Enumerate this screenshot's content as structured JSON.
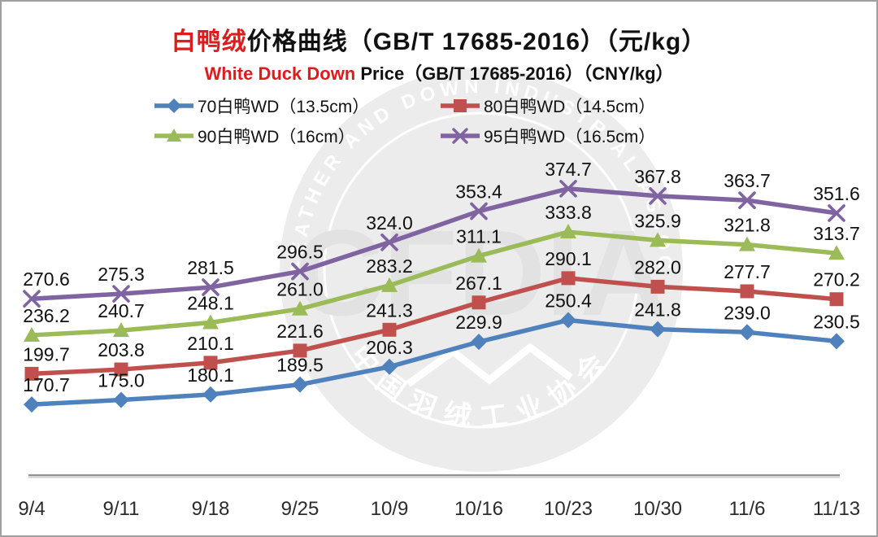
{
  "title": {
    "highlight": "白鸭绒",
    "rest": "价格曲线（GB/T 17685-2016）（元/kg）"
  },
  "subtitle": {
    "highlight": "White Duck Down",
    "rest": " Price（GB/T 17685-2016）（CNY/kg）"
  },
  "watermark": {
    "ring_text_top": "CHINA FEATHER AND DOWN INDUSTRIAL ASSOCIATION",
    "ring_text_bottom": "中国羽绒工业协会",
    "center_text": "CFDIA",
    "circle_color": "#ececec",
    "text_color": "#ffffff",
    "center_text_color": "#e2e2e2"
  },
  "colors": {
    "title_highlight": "#e01b1b",
    "axis_line": "#949494",
    "axis_shadow": "#d2d2d2",
    "tick_label": "#2b2b2b",
    "data_label": "#111111"
  },
  "chart_data": {
    "type": "line",
    "title": "白鸭绒价格曲线（GB/T 17685-2016）（元/kg）",
    "subtitle": "White Duck Down Price（GB/T 17685-2016）（CNY/kg）",
    "xlabel": "",
    "ylabel": "",
    "ylim": [
      160,
      390
    ],
    "grid": false,
    "legend_position": "top",
    "data_labels": true,
    "categories": [
      "9/4",
      "9/11",
      "9/18",
      "9/25",
      "10/9",
      "10/16",
      "10/23",
      "10/30",
      "11/6",
      "11/13"
    ],
    "series": [
      {
        "name": "70白鸭WD（13.5cm）",
        "grade": "70",
        "color": "#4F81BD",
        "marker": "diamond",
        "values": [
          170.7,
          175.0,
          180.1,
          189.5,
          206.3,
          229.9,
          250.4,
          241.8,
          239.0,
          230.5
        ]
      },
      {
        "name": "80白鸭WD（14.5cm）",
        "grade": "80",
        "color": "#C0504D",
        "marker": "square",
        "values": [
          199.7,
          203.8,
          210.1,
          221.6,
          241.3,
          267.1,
          290.1,
          282.0,
          277.7,
          270.2
        ]
      },
      {
        "name": "90白鸭WD（16cm）",
        "grade": "90",
        "color": "#9BBB59",
        "marker": "triangle",
        "values": [
          236.2,
          240.7,
          248.1,
          261.0,
          283.2,
          311.1,
          333.8,
          325.9,
          321.8,
          313.7
        ]
      },
      {
        "name": "95白鸭WD（16.5cm）",
        "grade": "95",
        "color": "#8064A2",
        "marker": "x",
        "values": [
          270.6,
          275.3,
          281.5,
          296.5,
          324.0,
          353.4,
          374.7,
          367.8,
          363.7,
          351.6
        ]
      }
    ]
  }
}
